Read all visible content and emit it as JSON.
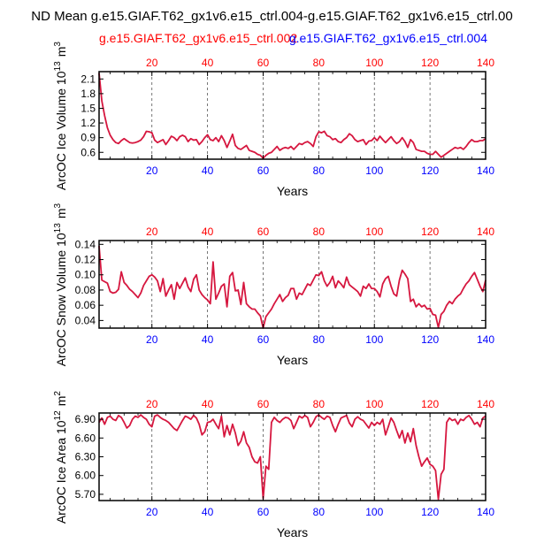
{
  "figure": {
    "title": "ND Mean g.e15.GIAF.T62_gx1v6.e15_ctrl.004-g.e15.GIAF.T62_gx1v6.e15_ctrl.00",
    "subtitle_left": "g.e15.GIAF.T62_gx1v6.e15_ctrl.002",
    "subtitle_right": "g.e15.GIAF.T62_gx1v6.e15_ctrl.004",
    "colors": {
      "series": "#d6173f",
      "top_axis": "#ff0000",
      "bottom_axis": "#0000ff",
      "subtitle_left": "#ff0000",
      "subtitle_right": "#0000ff",
      "text": "#000000",
      "grid": "#555555"
    }
  },
  "chart_data": [
    {
      "type": "line",
      "ylabel": "ArcOC Ice Volume 10^13 m^3",
      "xlabel": "Years",
      "xlim": [
        1,
        140
      ],
      "ylim": [
        0.46,
        2.25
      ],
      "x_ticks": [
        "20",
        "40",
        "60",
        "80",
        "100",
        "120",
        "140"
      ],
      "y_ticks": [
        "0.6",
        "0.9",
        "1.2",
        "1.5",
        "1.8",
        "2.1"
      ],
      "grid_x": [
        20,
        40,
        60,
        80,
        100,
        120
      ],
      "series": [
        {
          "values": [
            2.22,
            1.65,
            1.35,
            1.1,
            0.95,
            0.86,
            0.8,
            0.78,
            0.84,
            0.88,
            0.84,
            0.8,
            0.79,
            0.8,
            0.82,
            0.85,
            0.92,
            1.03,
            1.02,
            1.0,
            0.85,
            0.8,
            0.83,
            0.86,
            0.76,
            0.84,
            0.93,
            0.9,
            0.84,
            0.92,
            0.95,
            0.92,
            0.82,
            0.88,
            0.85,
            0.86,
            0.76,
            0.82,
            0.9,
            0.96,
            0.86,
            0.84,
            0.9,
            0.82,
            0.94,
            0.84,
            0.7,
            0.83,
            0.97,
            0.74,
            0.68,
            0.66,
            0.7,
            0.74,
            0.64,
            0.62,
            0.6,
            0.56,
            0.54,
            0.48,
            0.54,
            0.58,
            0.6,
            0.66,
            0.72,
            0.64,
            0.68,
            0.7,
            0.68,
            0.72,
            0.66,
            0.72,
            0.78,
            0.76,
            0.8,
            0.82,
            0.78,
            0.72,
            0.92,
            1.02,
            1.0,
            1.03,
            0.94,
            0.92,
            0.86,
            0.88,
            0.82,
            0.8,
            0.86,
            0.9,
            0.98,
            0.94,
            0.86,
            0.82,
            0.84,
            0.86,
            0.76,
            0.83,
            0.84,
            0.9,
            0.84,
            0.93,
            0.86,
            0.8,
            0.86,
            0.92,
            0.84,
            0.78,
            0.82,
            0.9,
            0.82,
            0.7,
            0.86,
            0.8,
            0.66,
            0.64,
            0.62,
            0.62,
            0.58,
            0.56,
            0.56,
            0.62,
            0.56,
            0.5,
            0.54,
            0.58,
            0.62,
            0.66,
            0.7,
            0.68,
            0.7,
            0.66,
            0.72,
            0.8,
            0.86,
            0.82,
            0.82,
            0.84,
            0.84,
            0.88
          ]
        }
      ]
    },
    {
      "type": "line",
      "ylabel": "ArcOC Snow Volume 10^13 m^3",
      "xlabel": "Years",
      "xlim": [
        1,
        140
      ],
      "ylim": [
        0.03,
        0.145
      ],
      "x_ticks": [
        "20",
        "40",
        "60",
        "80",
        "100",
        "120",
        "140"
      ],
      "y_ticks": [
        "0.04",
        "0.06",
        "0.08",
        "0.10",
        "0.12",
        "0.14"
      ],
      "grid_x": [
        20,
        40,
        60,
        80,
        100,
        120
      ],
      "series": [
        {
          "values": [
            0.138,
            0.093,
            0.091,
            0.089,
            0.078,
            0.076,
            0.077,
            0.081,
            0.104,
            0.09,
            0.086,
            0.081,
            0.078,
            0.074,
            0.07,
            0.076,
            0.086,
            0.092,
            0.098,
            0.1,
            0.097,
            0.092,
            0.078,
            0.095,
            0.072,
            0.08,
            0.087,
            0.068,
            0.09,
            0.082,
            0.089,
            0.096,
            0.084,
            0.078,
            0.094,
            0.1,
            0.08,
            0.074,
            0.07,
            0.067,
            0.062,
            0.117,
            0.068,
            0.076,
            0.085,
            0.088,
            0.058,
            0.098,
            0.103,
            0.079,
            0.08,
            0.061,
            0.09,
            0.062,
            0.058,
            0.055,
            0.055,
            0.05,
            0.046,
            0.03,
            0.045,
            0.05,
            0.055,
            0.062,
            0.068,
            0.074,
            0.065,
            0.07,
            0.073,
            0.082,
            0.082,
            0.068,
            0.076,
            0.074,
            0.081,
            0.088,
            0.086,
            0.093,
            0.1,
            0.099,
            0.104,
            0.092,
            0.085,
            0.09,
            0.098,
            0.083,
            0.092,
            0.088,
            0.083,
            0.097,
            0.087,
            0.084,
            0.081,
            0.078,
            0.072,
            0.085,
            0.082,
            0.088,
            0.082,
            0.082,
            0.078,
            0.071,
            0.088,
            0.095,
            0.098,
            0.085,
            0.075,
            0.072,
            0.093,
            0.106,
            0.101,
            0.095,
            0.065,
            0.068,
            0.058,
            0.062,
            0.058,
            0.06,
            0.055,
            0.056,
            0.048,
            0.047,
            0.031,
            0.048,
            0.052,
            0.06,
            0.065,
            0.062,
            0.068,
            0.072,
            0.075,
            0.082,
            0.088,
            0.092,
            0.098,
            0.103,
            0.094,
            0.085,
            0.078,
            0.093
          ]
        }
      ]
    },
    {
      "type": "line",
      "ylabel": "ArcOC Ice Area 10^12 m^2",
      "xlabel": "Years",
      "xlim": [
        1,
        140
      ],
      "ylim": [
        5.6,
        7.0
      ],
      "x_ticks": [
        "20",
        "40",
        "60",
        "80",
        "100",
        "120",
        "140"
      ],
      "y_ticks": [
        "5.70",
        "6.00",
        "6.30",
        "6.60",
        "6.90"
      ],
      "grid_x": [
        20,
        40,
        60,
        80,
        100,
        120
      ],
      "series": [
        {
          "values": [
            6.85,
            6.92,
            6.82,
            6.93,
            6.95,
            6.9,
            6.88,
            6.96,
            6.93,
            6.85,
            6.76,
            6.8,
            6.9,
            6.95,
            6.93,
            6.97,
            6.93,
            6.9,
            6.82,
            6.78,
            6.95,
            6.97,
            6.93,
            6.9,
            6.88,
            6.85,
            6.8,
            6.75,
            6.72,
            6.8,
            6.88,
            6.95,
            6.93,
            6.9,
            6.96,
            6.92,
            6.82,
            6.65,
            6.7,
            6.85,
            6.86,
            6.9,
            6.82,
            6.75,
            6.95,
            6.62,
            6.8,
            6.65,
            6.82,
            6.68,
            6.48,
            6.55,
            6.7,
            6.52,
            6.45,
            6.3,
            6.22,
            6.2,
            6.3,
            5.63,
            6.15,
            6.1,
            6.85,
            6.93,
            6.88,
            6.85,
            6.9,
            6.93,
            6.92,
            6.88,
            6.75,
            6.85,
            6.95,
            6.92,
            6.96,
            6.93,
            6.78,
            6.85,
            6.94,
            6.97,
            6.93,
            6.9,
            6.95,
            6.93,
            6.8,
            6.7,
            6.82,
            6.92,
            6.94,
            6.96,
            6.84,
            6.78,
            6.9,
            6.94,
            6.9,
            6.88,
            6.82,
            6.76,
            6.85,
            6.8,
            6.85,
            6.82,
            6.9,
            6.65,
            6.78,
            6.92,
            6.85,
            6.72,
            6.6,
            6.72,
            6.52,
            6.68,
            6.54,
            6.75,
            6.48,
            6.3,
            6.15,
            6.22,
            6.28,
            6.18,
            6.15,
            6.08,
            5.62,
            6.02,
            6.1,
            6.85,
            6.92,
            6.88,
            6.9,
            6.82,
            6.9,
            6.88,
            6.93,
            6.96,
            6.9,
            6.82,
            6.85,
            6.78,
            6.92,
            6.95
          ]
        }
      ]
    }
  ]
}
